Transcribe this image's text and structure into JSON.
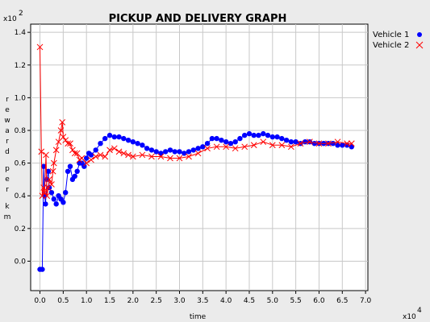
{
  "chart_data": {
    "type": "line",
    "title": "PICKUP AND DELIVERY GRAPH",
    "xlabel": "time",
    "ylabel": "reward per km",
    "x_multiplier": "x10",
    "x_multiplier_exp": "4",
    "y_multiplier": "x10",
    "y_multiplier_exp": "2",
    "xlim": [
      -0.2,
      7.05
    ],
    "ylim": [
      -0.18,
      1.45
    ],
    "xticks": [
      0.0,
      0.5,
      1.0,
      1.5,
      2.0,
      2.5,
      3.0,
      3.5,
      4.0,
      4.5,
      5.0,
      5.5,
      6.0,
      6.5,
      7.0
    ],
    "xtick_labels": [
      "0.0",
      "0.5",
      "1.0",
      "1.5",
      "2.0",
      "2.5",
      "3.0",
      "3.5",
      "4.0",
      "4.5",
      "5.0",
      "5.5",
      "6.0",
      "6.5",
      "7.0"
    ],
    "yticks": [
      0.0,
      0.2,
      0.4,
      0.6,
      0.8,
      1.0,
      1.2,
      1.4
    ],
    "ytick_labels": [
      "0.0",
      "0.2",
      "0.4",
      "0.6",
      "0.8",
      "1.0",
      "1.2",
      "1.4"
    ],
    "grid": true,
    "legend_position": "top-right",
    "series": [
      {
        "name": "Vehicle 1",
        "color": "#0000ff",
        "marker": "circle",
        "x": [
          0.0,
          0.05,
          0.08,
          0.1,
          0.12,
          0.15,
          0.18,
          0.2,
          0.25,
          0.3,
          0.35,
          0.4,
          0.45,
          0.5,
          0.55,
          0.6,
          0.65,
          0.7,
          0.75,
          0.8,
          0.85,
          0.9,
          0.95,
          1.0,
          1.05,
          1.1,
          1.2,
          1.3,
          1.4,
          1.5,
          1.6,
          1.7,
          1.8,
          1.9,
          2.0,
          2.1,
          2.2,
          2.3,
          2.4,
          2.5,
          2.6,
          2.7,
          2.8,
          2.9,
          3.0,
          3.1,
          3.2,
          3.3,
          3.4,
          3.5,
          3.6,
          3.7,
          3.8,
          3.9,
          4.0,
          4.1,
          4.2,
          4.3,
          4.4,
          4.5,
          4.6,
          4.7,
          4.8,
          4.9,
          5.0,
          5.1,
          5.2,
          5.3,
          5.4,
          5.5,
          5.6,
          5.7,
          5.8,
          5.9,
          6.0,
          6.1,
          6.2,
          6.3,
          6.4,
          6.5,
          6.6,
          6.7
        ],
        "y": [
          -0.05,
          -0.05,
          0.58,
          0.4,
          0.35,
          0.5,
          0.55,
          0.45,
          0.42,
          0.38,
          0.35,
          0.4,
          0.38,
          0.36,
          0.42,
          0.55,
          0.58,
          0.5,
          0.52,
          0.55,
          0.6,
          0.6,
          0.58,
          0.63,
          0.66,
          0.65,
          0.68,
          0.72,
          0.75,
          0.77,
          0.76,
          0.76,
          0.75,
          0.74,
          0.73,
          0.72,
          0.71,
          0.69,
          0.68,
          0.67,
          0.66,
          0.67,
          0.68,
          0.67,
          0.67,
          0.66,
          0.67,
          0.68,
          0.69,
          0.7,
          0.72,
          0.75,
          0.75,
          0.74,
          0.73,
          0.72,
          0.73,
          0.75,
          0.77,
          0.78,
          0.77,
          0.77,
          0.78,
          0.77,
          0.76,
          0.76,
          0.75,
          0.74,
          0.73,
          0.73,
          0.72,
          0.73,
          0.73,
          0.72,
          0.72,
          0.72,
          0.72,
          0.72,
          0.71,
          0.71,
          0.71,
          0.7
        ]
      },
      {
        "name": "Vehicle 2",
        "color": "#ff0000",
        "marker": "x",
        "x": [
          0.0,
          0.03,
          0.05,
          0.08,
          0.1,
          0.13,
          0.15,
          0.18,
          0.2,
          0.25,
          0.28,
          0.3,
          0.35,
          0.4,
          0.45,
          0.48,
          0.5,
          0.55,
          0.6,
          0.65,
          0.7,
          0.75,
          0.8,
          0.85,
          0.9,
          1.0,
          1.1,
          1.2,
          1.3,
          1.4,
          1.5,
          1.6,
          1.7,
          1.8,
          1.9,
          2.0,
          2.2,
          2.4,
          2.6,
          2.8,
          3.0,
          3.2,
          3.4,
          3.6,
          3.8,
          4.0,
          4.2,
          4.4,
          4.6,
          4.8,
          5.0,
          5.2,
          5.4,
          5.6,
          5.8,
          6.0,
          6.2,
          6.4,
          6.6,
          6.7
        ],
        "y": [
          1.31,
          0.67,
          0.4,
          0.45,
          0.42,
          0.65,
          0.4,
          0.45,
          0.5,
          0.47,
          0.55,
          0.6,
          0.68,
          0.73,
          0.8,
          0.85,
          0.76,
          0.74,
          0.72,
          0.72,
          0.68,
          0.66,
          0.66,
          0.62,
          0.63,
          0.6,
          0.62,
          0.64,
          0.65,
          0.64,
          0.68,
          0.69,
          0.67,
          0.66,
          0.65,
          0.64,
          0.65,
          0.64,
          0.64,
          0.63,
          0.63,
          0.64,
          0.66,
          0.69,
          0.7,
          0.7,
          0.69,
          0.7,
          0.71,
          0.73,
          0.71,
          0.71,
          0.7,
          0.72,
          0.73,
          0.72,
          0.72,
          0.73,
          0.72,
          0.72
        ]
      }
    ]
  }
}
